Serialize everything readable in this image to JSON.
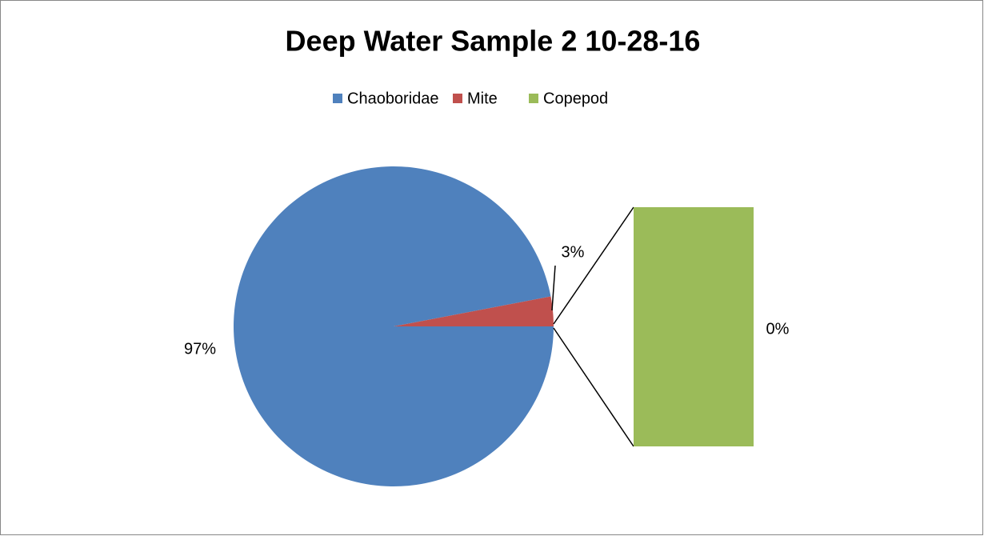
{
  "chart_data": {
    "type": "pie",
    "subtype": "pie-of-bar",
    "title": "Deep Water Sample 2 10-28-16",
    "categories": [
      "Chaoboridae",
      "Mite",
      "Copepod"
    ],
    "values": [
      97,
      3,
      0
    ],
    "value_labels": [
      "97%",
      "3%",
      "0%"
    ],
    "colors": [
      "#4f81bd",
      "#c0504d",
      "#9bbb59"
    ],
    "legend": "top"
  }
}
